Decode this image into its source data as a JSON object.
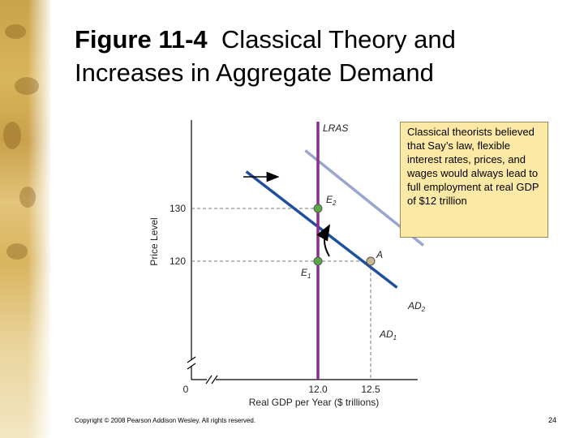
{
  "slide": {
    "title_bold": "Figure 11-4",
    "title_rest": "Classical Theory and Increases in Aggregate Demand",
    "callout": "Classical theorists believed that Say’s law, flexible interest rates, prices, and wages would always lead to full employment at real GDP of $12 trillion",
    "copyright": "Copyright © 2008 Pearson Addison Wesley. All rights reserved.",
    "page_number": "24"
  },
  "chart_data": {
    "type": "line",
    "xlabel": "Real GDP per Year ($ trillions)",
    "ylabel": "Price Level",
    "origin_label": "0",
    "x_ticks": [
      12.0,
      12.5
    ],
    "x_tick_labels": [
      "12.0",
      "12.5"
    ],
    "y_ticks": [
      120,
      130
    ],
    "y_tick_labels": [
      "120",
      "130"
    ],
    "series": [
      {
        "name": "LRAS",
        "type": "vertical",
        "x": 12.0,
        "color": "#8b2f8f"
      },
      {
        "name": "AD",
        "sub": "1",
        "x": [
          11.32,
          12.75
        ],
        "y": [
          137,
          115
        ],
        "color": "#1f4fa0"
      },
      {
        "name": "AD",
        "sub": "2",
        "x": [
          11.88,
          13.0
        ],
        "y": [
          141,
          123
        ],
        "color": "#9aa6cf"
      }
    ],
    "points": [
      {
        "name": "E",
        "sub": "2",
        "x": 12.0,
        "y": 130,
        "color": "#5aa84a"
      },
      {
        "name": "E",
        "sub": "1",
        "x": 12.0,
        "y": 120,
        "color": "#5aa84a"
      },
      {
        "name": "A",
        "x": 12.5,
        "y": 120,
        "color": "#c9b98a"
      }
    ],
    "shift_arrow": {
      "direction": "right"
    },
    "grid": false
  }
}
